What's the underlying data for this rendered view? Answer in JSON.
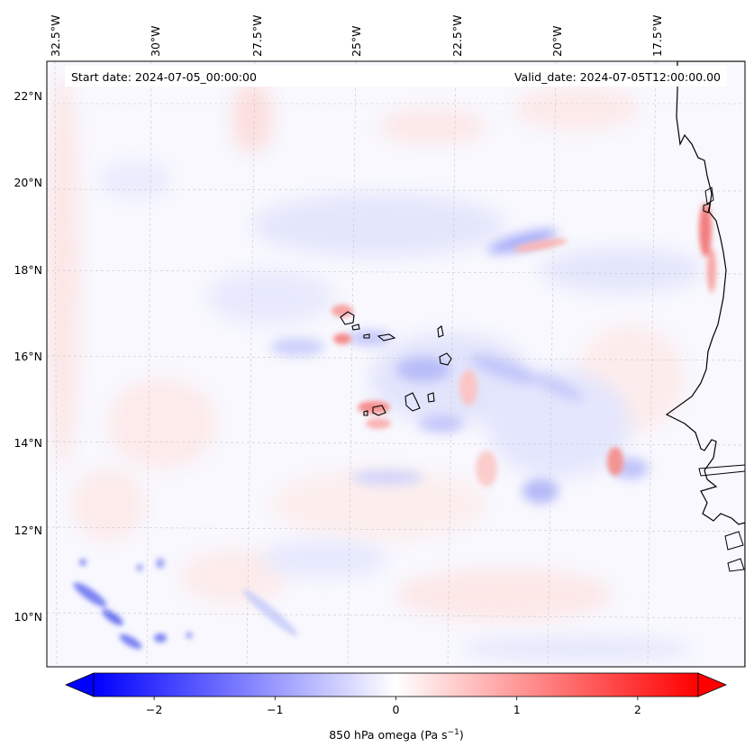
{
  "header": {
    "start_date": "Start date: 2024-07-05_00:00:00",
    "valid_date": "Valid_date: 2024-07-05T12:00:00.00"
  },
  "longitude_labels": [
    "32.5°W",
    "30°W",
    "27.5°W",
    "25°W",
    "22.5°W",
    "20°W",
    "17.5°W"
  ],
  "latitude_labels": [
    "22°N",
    "20°N",
    "18°N",
    "16°N",
    "14°N",
    "12°N",
    "10°N"
  ],
  "colorbar": {
    "ticks": [
      "−2",
      "−1",
      "0",
      "1",
      "2"
    ],
    "tick_values": [
      -2,
      -1,
      0,
      1,
      2
    ],
    "range": [
      -2.5,
      2.5
    ],
    "label": "850 hPa omega (Pa s",
    "label_exponent": "−1",
    "label_close": ")",
    "colors": {
      "low": "#0000ff",
      "mid": "#ffffff",
      "high": "#ff0000"
    }
  },
  "field_features": [
    {
      "name": "cape-verde-dipole-north",
      "sign": "positive"
    },
    {
      "name": "cape-verde-dipole-south",
      "sign": "positive"
    },
    {
      "name": "coastal-upwelling-band",
      "sign": "positive"
    },
    {
      "name": "dakar-plume",
      "sign": "positive"
    },
    {
      "name": "ascent-streak-18N",
      "sign": "negative"
    },
    {
      "name": "southwest-convection",
      "sign": "negative"
    },
    {
      "name": "central-ascent-band",
      "sign": "negative"
    }
  ]
}
